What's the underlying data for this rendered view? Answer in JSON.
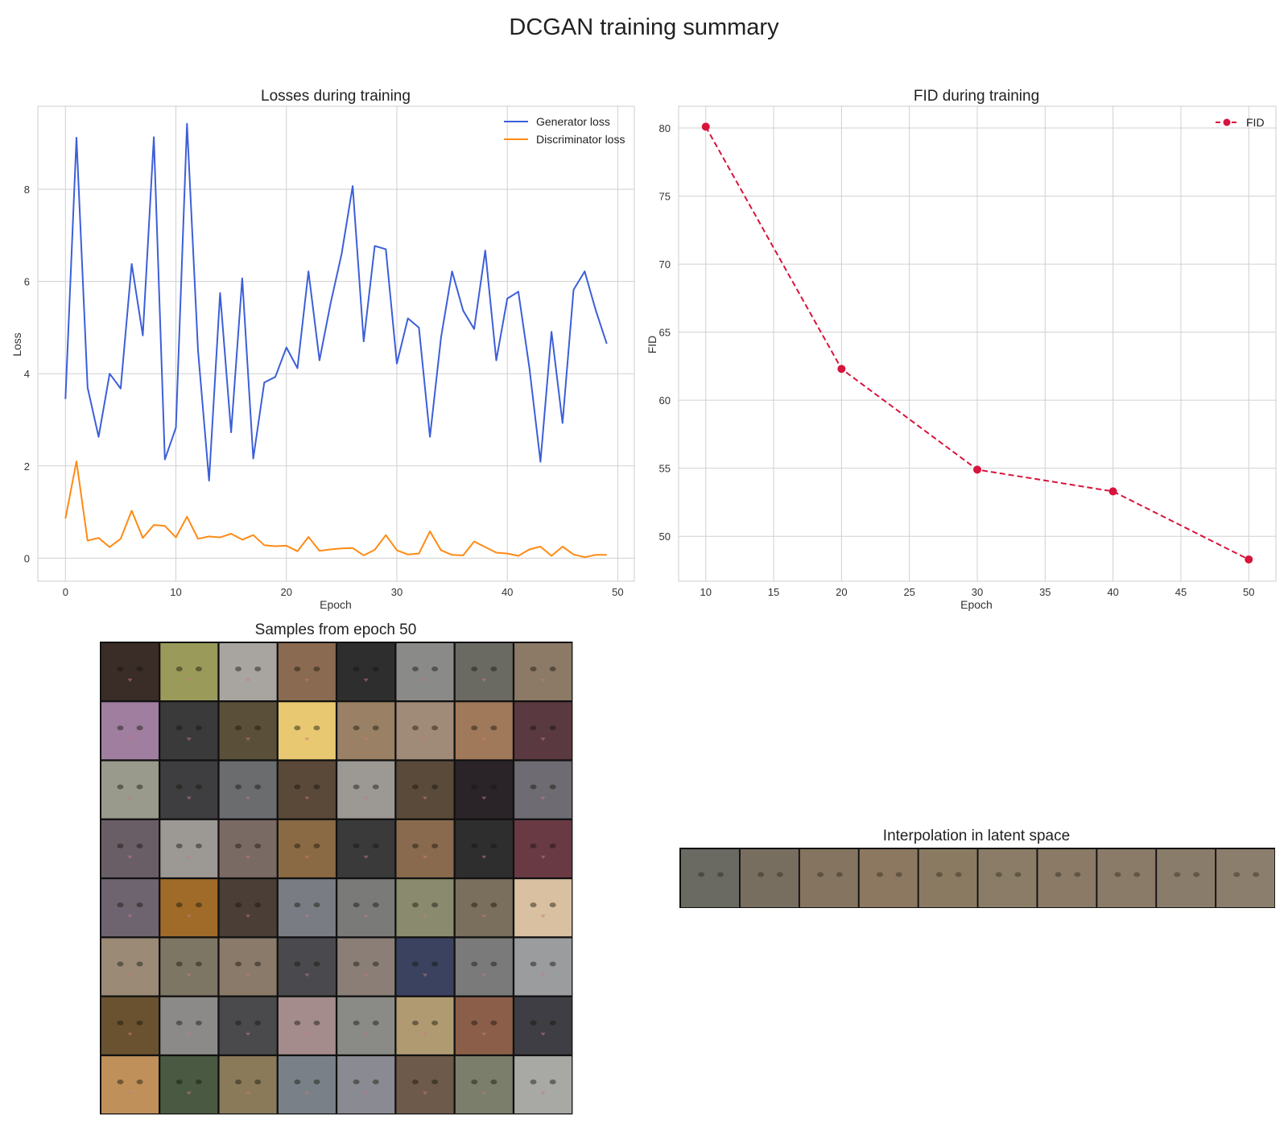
{
  "suptitle": "DCGAN training summary",
  "chart_data": [
    {
      "type": "line",
      "title": "Losses during training",
      "xlabel": "Epoch",
      "ylabel": "Loss",
      "xlim": [
        -2.5,
        51.5
      ],
      "ylim": [
        -0.5,
        9.8
      ],
      "xticks": [
        0,
        10,
        20,
        30,
        40,
        50
      ],
      "yticks": [
        0,
        2,
        4,
        6,
        8
      ],
      "grid": true,
      "legend": "top-right",
      "x": [
        0,
        1,
        2,
        3,
        4,
        5,
        6,
        7,
        8,
        9,
        10,
        11,
        12,
        13,
        14,
        15,
        16,
        17,
        18,
        19,
        20,
        21,
        22,
        23,
        24,
        25,
        26,
        27,
        28,
        29,
        30,
        31,
        32,
        33,
        34,
        35,
        36,
        37,
        38,
        39,
        40,
        41,
        42,
        43,
        44,
        45,
        46,
        47,
        48,
        49
      ],
      "series": [
        {
          "name": "Generator loss",
          "color": "#3c5fd8",
          "values": [
            3.45,
            9.12,
            3.7,
            2.63,
            4.0,
            3.68,
            6.38,
            4.83,
            9.13,
            2.14,
            2.83,
            9.42,
            4.5,
            1.68,
            5.75,
            2.73,
            6.07,
            2.16,
            3.81,
            3.93,
            4.57,
            4.12,
            6.22,
            4.29,
            5.52,
            6.6,
            8.07,
            4.7,
            6.77,
            6.7,
            4.22,
            5.2,
            5.0,
            2.63,
            4.79,
            6.22,
            5.37,
            4.97,
            6.67,
            4.29,
            5.63,
            5.78,
            4.13,
            2.09,
            4.91,
            2.93,
            5.82,
            6.22,
            5.38,
            4.65
          ]
        },
        {
          "name": "Discriminator loss",
          "color": "#ff8a14",
          "values": [
            0.86,
            2.1,
            0.38,
            0.44,
            0.24,
            0.42,
            1.03,
            0.44,
            0.72,
            0.7,
            0.45,
            0.9,
            0.42,
            0.47,
            0.45,
            0.53,
            0.4,
            0.5,
            0.28,
            0.26,
            0.27,
            0.15,
            0.46,
            0.16,
            0.19,
            0.21,
            0.22,
            0.06,
            0.18,
            0.5,
            0.17,
            0.08,
            0.1,
            0.58,
            0.17,
            0.07,
            0.06,
            0.36,
            0.24,
            0.12,
            0.1,
            0.05,
            0.19,
            0.25,
            0.05,
            0.25,
            0.08,
            0.02,
            0.07,
            0.07
          ]
        }
      ]
    },
    {
      "type": "line",
      "title": "FID during training",
      "xlabel": "Epoch",
      "ylabel": "FID",
      "xlim": [
        8,
        52
      ],
      "ylim": [
        46.7,
        81.6
      ],
      "xticks": [
        10,
        15,
        20,
        25,
        30,
        35,
        40,
        45,
        50
      ],
      "yticks": [
        50,
        55,
        60,
        65,
        70,
        75,
        80
      ],
      "grid": true,
      "legend": "top-right",
      "series": [
        {
          "name": "FID",
          "color": "#d7143c",
          "linestyle": "dashed",
          "marker": "circle",
          "x": [
            10,
            20,
            30,
            40,
            50
          ],
          "values": [
            80.1,
            62.3,
            54.9,
            53.3,
            48.3
          ]
        }
      ]
    }
  ],
  "samples": {
    "title": "Samples from epoch 50",
    "rows": 8,
    "cols": 8,
    "tile_colors": [
      [
        "#3a2c26",
        "#9a9a5a",
        "#a8a4a0",
        "#8a6a50",
        "#2e2e2e",
        "#8a8a88",
        "#6a6a62",
        "#8c7a66"
      ],
      [
        "#a07ea0",
        "#3a3a3a",
        "#5a503a",
        "#e8c870",
        "#9a8064",
        "#a08a78",
        "#a0785a",
        "#5a3a40"
      ],
      [
        "#9a9a8c",
        "#3e3e40",
        "#6a6c6e",
        "#5a4838",
        "#9c9894",
        "#5a4a3a",
        "#2a2428",
        "#6e6c72"
      ],
      [
        "#6a5e66",
        "#9c9894",
        "#7a6a64",
        "#8a6a44",
        "#3a3a3a",
        "#8a6a4e",
        "#2e2e2e",
        "#6a3a44"
      ],
      [
        "#6e6470",
        "#a06a28",
        "#4a3e36",
        "#7a7c84",
        "#7a7a78",
        "#8a8a6e",
        "#7a6e5c",
        "#d8c0a0"
      ],
      [
        "#9a8a76",
        "#7e7664",
        "#8a7a6a",
        "#4a4a4e",
        "#8a7e76",
        "#3a4260",
        "#7a7a7a",
        "#9a9c9e"
      ],
      [
        "#6a5230",
        "#8c8a88",
        "#4a4a4c",
        "#a48c8c",
        "#8a8a86",
        "#b09a72",
        "#8a5e48",
        "#3e3e44"
      ],
      [
        "#c0905a",
        "#4a5a42",
        "#8a7a5a",
        "#7a8088",
        "#8a8a92",
        "#6e5a4a",
        "#7a7e6a",
        "#a8a8a4"
      ]
    ]
  },
  "interpolation": {
    "title": "Interpolation in latent space",
    "frames": 10,
    "tile_colors": [
      "#6a6a62",
      "#786e60",
      "#847460",
      "#8c7860",
      "#8a7a62",
      "#8a7c66",
      "#8a7a66",
      "#8a7a68",
      "#8a7c6a",
      "#8c7e6c"
    ]
  }
}
